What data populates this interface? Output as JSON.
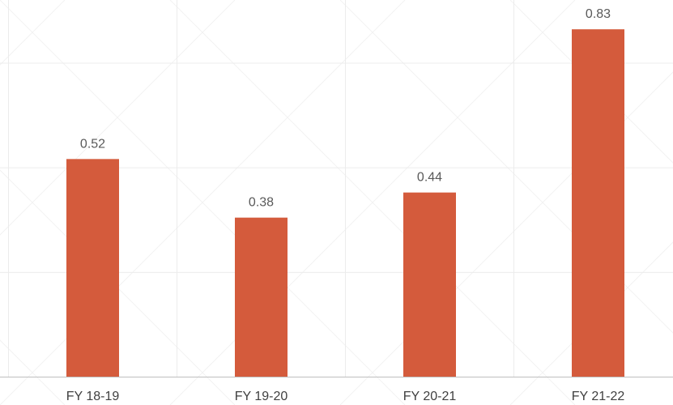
{
  "chart_data": {
    "type": "bar",
    "title": "",
    "xlabel": "",
    "ylabel": "",
    "categories": [
      "FY 18-19",
      "FY 19-20",
      "FY 20-21",
      "FY 21-22"
    ],
    "values": [
      0.52,
      0.38,
      0.44,
      0.83
    ],
    "data_labels": [
      "0.52",
      "0.38",
      "0.44",
      "0.83"
    ],
    "ylim": [
      0,
      0.9
    ],
    "grid": true,
    "legend": "none",
    "colors": {
      "bar": "#D45B3C",
      "axis": "#BFBFBF",
      "grid": "#ECECEC",
      "label": "#595959"
    }
  }
}
